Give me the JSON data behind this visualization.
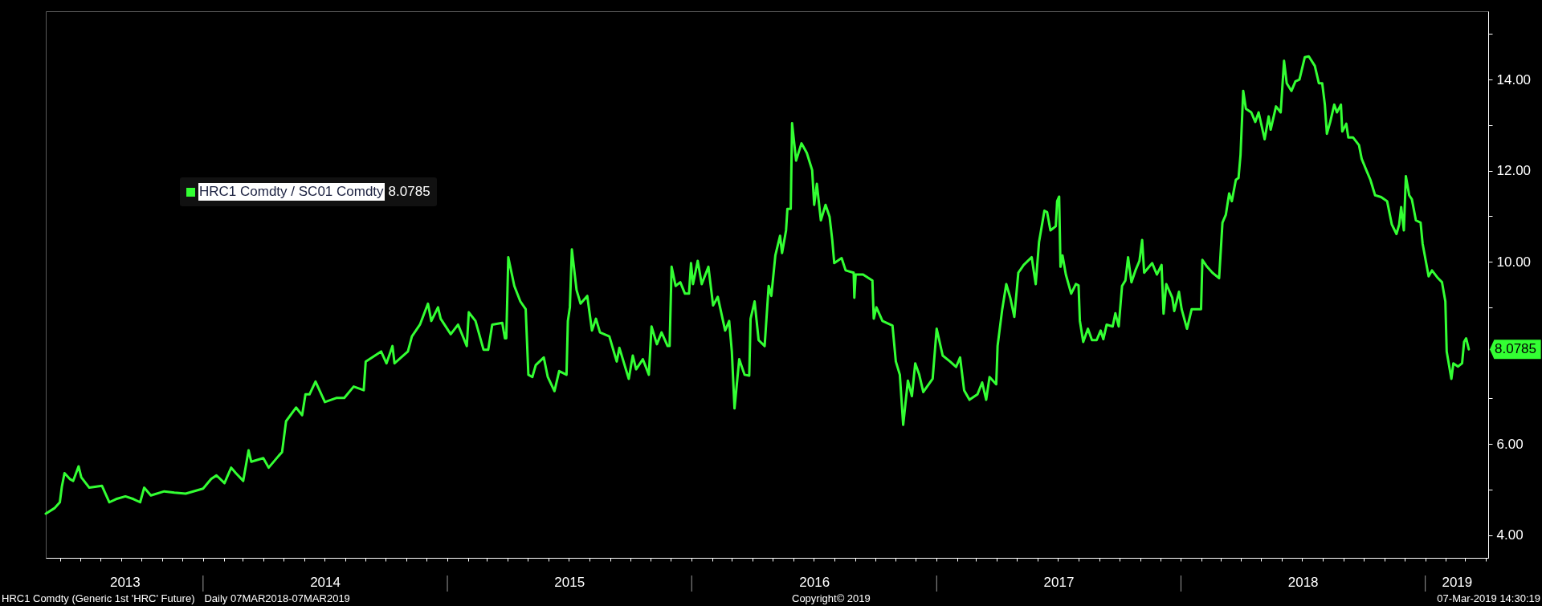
{
  "chart_data": {
    "type": "line",
    "legend": "top left",
    "xlim": [
      "2013-05-11",
      "2019-04-05"
    ],
    "ylim": [
      3.5,
      15.5
    ],
    "xticks": [
      {
        "value": "2013-06-01",
        "label": null
      },
      {
        "value": "2013-07-01",
        "label": null
      },
      {
        "value": "2013-08-01",
        "label": null
      },
      {
        "value": "2013-09-01",
        "label": null
      },
      {
        "value": "2013-09-06",
        "label": "2013"
      },
      {
        "value": "2013-10-01",
        "label": null
      },
      {
        "value": "2013-11-01",
        "label": null
      },
      {
        "value": "2013-12-01",
        "label": null
      },
      {
        "value": "2014-01-01",
        "label": null
      },
      {
        "value": "2014-02-01",
        "label": null
      },
      {
        "value": "2014-03-01",
        "label": null
      },
      {
        "value": "2014-04-01",
        "label": null
      },
      {
        "value": "2014-05-01",
        "label": null
      },
      {
        "value": "2014-06-01",
        "label": null
      },
      {
        "value": "2014-07-01",
        "label": null
      },
      {
        "value": "2014-07-02",
        "label": "2014"
      },
      {
        "value": "2014-08-01",
        "label": null
      },
      {
        "value": "2014-09-01",
        "label": null
      },
      {
        "value": "2014-10-01",
        "label": null
      },
      {
        "value": "2014-11-01",
        "label": null
      },
      {
        "value": "2014-12-01",
        "label": null
      },
      {
        "value": "2015-01-01",
        "label": null
      },
      {
        "value": "2015-02-01",
        "label": null
      },
      {
        "value": "2015-03-01",
        "label": null
      },
      {
        "value": "2015-04-01",
        "label": null
      },
      {
        "value": "2015-05-01",
        "label": null
      },
      {
        "value": "2015-06-01",
        "label": null
      },
      {
        "value": "2015-07-01",
        "label": null
      },
      {
        "value": "2015-07-02",
        "label": "2015"
      },
      {
        "value": "2015-08-01",
        "label": null
      },
      {
        "value": "2015-09-01",
        "label": null
      },
      {
        "value": "2015-10-01",
        "label": null
      },
      {
        "value": "2015-11-01",
        "label": null
      },
      {
        "value": "2015-12-01",
        "label": null
      },
      {
        "value": "2016-01-01",
        "label": null
      },
      {
        "value": "2016-02-01",
        "label": null
      },
      {
        "value": "2016-03-01",
        "label": null
      },
      {
        "value": "2016-04-01",
        "label": null
      },
      {
        "value": "2016-05-01",
        "label": null
      },
      {
        "value": "2016-06-01",
        "label": null
      },
      {
        "value": "2016-07-01",
        "label": null
      },
      {
        "value": "2016-07-02",
        "label": "2016"
      },
      {
        "value": "2016-08-01",
        "label": null
      },
      {
        "value": "2016-09-01",
        "label": null
      },
      {
        "value": "2016-10-01",
        "label": null
      },
      {
        "value": "2016-11-01",
        "label": null
      },
      {
        "value": "2016-12-01",
        "label": null
      },
      {
        "value": "2017-01-01",
        "label": null
      },
      {
        "value": "2017-02-01",
        "label": null
      },
      {
        "value": "2017-03-01",
        "label": null
      },
      {
        "value": "2017-04-01",
        "label": null
      },
      {
        "value": "2017-05-01",
        "label": null
      },
      {
        "value": "2017-06-01",
        "label": null
      },
      {
        "value": "2017-07-01",
        "label": null
      },
      {
        "value": "2017-07-02",
        "label": "2017"
      },
      {
        "value": "2017-08-01",
        "label": null
      },
      {
        "value": "2017-09-01",
        "label": null
      },
      {
        "value": "2017-10-01",
        "label": null
      },
      {
        "value": "2017-11-01",
        "label": null
      },
      {
        "value": "2017-12-01",
        "label": null
      },
      {
        "value": "2018-01-01",
        "label": null
      },
      {
        "value": "2018-02-01",
        "label": null
      },
      {
        "value": "2018-03-01",
        "label": null
      },
      {
        "value": "2018-04-01",
        "label": null
      },
      {
        "value": "2018-05-01",
        "label": null
      },
      {
        "value": "2018-06-01",
        "label": null
      },
      {
        "value": "2018-07-01",
        "label": null
      },
      {
        "value": "2018-07-02",
        "label": "2018"
      },
      {
        "value": "2018-08-01",
        "label": null
      },
      {
        "value": "2018-09-01",
        "label": null
      },
      {
        "value": "2018-10-01",
        "label": null
      },
      {
        "value": "2018-11-01",
        "label": null
      },
      {
        "value": "2018-12-01",
        "label": null
      },
      {
        "value": "2019-01-01",
        "label": null
      },
      {
        "value": "2019-02-01",
        "label": null
      },
      {
        "value": "2019-02-17",
        "label": "2019"
      },
      {
        "value": "2019-03-01",
        "label": null
      },
      {
        "value": "2019-04-01",
        "label": null
      }
    ],
    "yticks": [
      {
        "value": 4,
        "label": "4.00"
      },
      {
        "value": 5,
        "label": null
      },
      {
        "value": 6,
        "label": "6.00"
      },
      {
        "value": 7,
        "label": null
      },
      {
        "value": 9,
        "label": null
      },
      {
        "value": 10,
        "label": "10.00"
      },
      {
        "value": 11,
        "label": null
      },
      {
        "value": 12,
        "label": "12.00"
      },
      {
        "value": 13,
        "label": null
      },
      {
        "value": 14,
        "label": "14.00"
      },
      {
        "value": 15,
        "label": null
      }
    ],
    "x": [
      "2013-05-11",
      "2013-05-24",
      "2013-06-01",
      "2013-06-04",
      "2013-06-08",
      "2013-06-16",
      "2013-06-21",
      "2013-06-29",
      "2013-07-03",
      "2013-07-15",
      "2013-08-03",
      "2013-08-14",
      "2013-08-24",
      "2013-09-07",
      "2013-09-19",
      "2013-09-29",
      "2013-10-05",
      "2013-10-15",
      "2013-11-04",
      "2013-11-19",
      "2013-12-06",
      "2014-01-01",
      "2014-01-13",
      "2014-01-21",
      "2014-02-02",
      "2014-02-12",
      "2014-02-19",
      "2014-03-02",
      "2014-03-10",
      "2014-03-14",
      "2014-04-01",
      "2014-04-09",
      "2014-04-24",
      "2014-04-29",
      "2014-05-05",
      "2014-05-20",
      "2014-05-29",
      "2014-06-03",
      "2014-06-09",
      "2014-06-18",
      "2014-07-02",
      "2014-07-19",
      "2014-07-31",
      "2014-08-14",
      "2014-08-29",
      "2014-09-01",
      "2014-09-24",
      "2014-10-02",
      "2014-10-11",
      "2014-10-14",
      "2014-11-03",
      "2014-11-09",
      "2014-11-21",
      "2014-12-03",
      "2014-12-08",
      "2014-12-18",
      "2014-12-22",
      "2015-01-06",
      "2015-01-17",
      "2015-01-30",
      "2015-02-02",
      "2015-02-12",
      "2015-02-24",
      "2015-03-03",
      "2015-03-09",
      "2015-03-24",
      "2015-03-28",
      "2015-03-30",
      "2015-04-02",
      "2015-04-11",
      "2015-04-20",
      "2015-04-28",
      "2015-05-02",
      "2015-05-08",
      "2015-05-13",
      "2015-05-25",
      "2015-05-31",
      "2015-06-10",
      "2015-06-17",
      "2015-06-28",
      "2015-06-30",
      "2015-07-03",
      "2015-07-06",
      "2015-07-13",
      "2015-07-19",
      "2015-07-29",
      "2015-08-05",
      "2015-08-11",
      "2015-08-17",
      "2015-08-31",
      "2015-09-11",
      "2015-09-15",
      "2015-09-29",
      "2015-10-05",
      "2015-10-10",
      "2015-10-20",
      "2015-10-29",
      "2015-11-02",
      "2015-11-10",
      "2015-11-17",
      "2015-11-26",
      "2015-11-29",
      "2015-12-02",
      "2015-12-08",
      "2015-12-15",
      "2015-12-22",
      "2015-12-28",
      "2015-12-31",
      "2016-01-03",
      "2016-01-10",
      "2016-01-16",
      "2016-01-26",
      "2016-02-02",
      "2016-02-09",
      "2016-02-20",
      "2016-02-26",
      "2016-03-01",
      "2016-03-05",
      "2016-03-12",
      "2016-03-20",
      "2016-03-27",
      "2016-03-29",
      "2016-04-04",
      "2016-04-10",
      "2016-04-19",
      "2016-04-25",
      "2016-04-29",
      "2016-05-05",
      "2016-05-12",
      "2016-05-15",
      "2016-05-21",
      "2016-05-23",
      "2016-05-28",
      "2016-05-30",
      "2016-06-05",
      "2016-06-13",
      "2016-06-21",
      "2016-06-29",
      "2016-07-02",
      "2016-07-06",
      "2016-07-12",
      "2016-07-19",
      "2016-07-25",
      "2016-07-29",
      "2016-08-01",
      "2016-08-12",
      "2016-08-18",
      "2016-08-30",
      "2016-08-31",
      "2016-09-02",
      "2016-09-13",
      "2016-09-27",
      "2016-09-29",
      "2016-10-03",
      "2016-10-12",
      "2016-10-27",
      "2016-11-01",
      "2016-11-07",
      "2016-11-12",
      "2016-11-19",
      "2016-11-25",
      "2016-11-30",
      "2016-12-06",
      "2016-12-12",
      "2016-12-26",
      "2017-01-01",
      "2017-01-10",
      "2017-01-21",
      "2017-01-30",
      "2017-02-05",
      "2017-02-11",
      "2017-02-19",
      "2017-03-03",
      "2017-03-10",
      "2017-03-16",
      "2017-03-21",
      "2017-03-31",
      "2017-04-02",
      "2017-04-09",
      "2017-04-15",
      "2017-04-21",
      "2017-04-27",
      "2017-05-03",
      "2017-05-11",
      "2017-05-23",
      "2017-05-29",
      "2017-06-03",
      "2017-06-11",
      "2017-06-15",
      "2017-06-20",
      "2017-06-28",
      "2017-06-30",
      "2017-07-03",
      "2017-07-05",
      "2017-07-08",
      "2017-07-13",
      "2017-07-21",
      "2017-07-28",
      "2017-08-01",
      "2017-08-03",
      "2017-08-08",
      "2017-08-15",
      "2017-08-21",
      "2017-08-28",
      "2017-09-03",
      "2017-09-07",
      "2017-09-12",
      "2017-09-21",
      "2017-09-25",
      "2017-09-30",
      "2017-10-05",
      "2017-10-10",
      "2017-10-14",
      "2017-10-19",
      "2017-10-25",
      "2017-10-31",
      "2017-11-04",
      "2017-11-07",
      "2017-11-19",
      "2017-11-26",
      "2017-12-03",
      "2017-12-06",
      "2017-12-10",
      "2017-12-19",
      "2017-12-22",
      "2017-12-29",
      "2018-01-02",
      "2018-01-10",
      "2018-01-17",
      "2018-01-22",
      "2018-01-31",
      "2018-02-02",
      "2018-02-09",
      "2018-02-17",
      "2018-02-27",
      "2018-03-04",
      "2018-03-09",
      "2018-03-14",
      "2018-03-18",
      "2018-03-24",
      "2018-03-28",
      "2018-03-31",
      "2018-04-04",
      "2018-04-08",
      "2018-04-16",
      "2018-04-22",
      "2018-04-27",
      "2018-05-06",
      "2018-05-12",
      "2018-05-15",
      "2018-05-23",
      "2018-05-30",
      "2018-06-04",
      "2018-06-08",
      "2018-06-15",
      "2018-06-21",
      "2018-06-27",
      "2018-07-05",
      "2018-07-11",
      "2018-07-20",
      "2018-07-26",
      "2018-07-31",
      "2018-08-04",
      "2018-08-07",
      "2018-08-12",
      "2018-08-18",
      "2018-08-22",
      "2018-08-28",
      "2018-08-30",
      "2018-09-05",
      "2018-09-08",
      "2018-09-15",
      "2018-09-24",
      "2018-09-28",
      "2018-10-05",
      "2018-10-11",
      "2018-10-18",
      "2018-10-27",
      "2018-11-05",
      "2018-11-12",
      "2018-11-19",
      "2018-11-23",
      "2018-11-26",
      "2018-11-30",
      "2018-12-03",
      "2018-12-08",
      "2018-12-12",
      "2018-12-18",
      "2018-12-25",
      "2018-12-28",
      "2019-01-06",
      "2019-01-11",
      "2019-01-20",
      "2019-01-26",
      "2019-01-31",
      "2019-02-02",
      "2019-02-09",
      "2019-02-12",
      "2019-02-19",
      "2019-02-25",
      "2019-02-28",
      "2019-03-03",
      "2019-03-07"
    ],
    "series": [
      {
        "name": "HRC1 Comdty / SC01 Comdty",
        "color": "#33ff33",
        "values": [
          4.47,
          4.59,
          4.72,
          5.06,
          5.36,
          5.23,
          5.19,
          5.51,
          5.27,
          5.04,
          5.08,
          4.72,
          4.79,
          4.85,
          4.79,
          4.72,
          5.04,
          4.87,
          4.96,
          4.93,
          4.91,
          5.02,
          5.23,
          5.31,
          5.14,
          5.48,
          5.36,
          5.19,
          5.86,
          5.61,
          5.69,
          5.48,
          5.74,
          5.82,
          6.5,
          6.8,
          6.63,
          7.09,
          7.09,
          7.37,
          6.92,
          7.01,
          7.01,
          7.26,
          7.18,
          7.81,
          8.03,
          7.77,
          8.15,
          7.77,
          8.03,
          8.36,
          8.62,
          9.08,
          8.7,
          9.0,
          8.75,
          8.41,
          8.62,
          8.15,
          8.89,
          8.7,
          8.07,
          8.07,
          8.62,
          8.66,
          8.32,
          8.32,
          10.1,
          9.47,
          9.13,
          8.96,
          7.52,
          7.47,
          7.73,
          7.9,
          7.47,
          7.16,
          7.6,
          7.52,
          8.7,
          9.0,
          10.27,
          9.38,
          9.08,
          9.25,
          8.49,
          8.75,
          8.45,
          8.36,
          7.81,
          8.11,
          7.43,
          7.94,
          7.64,
          7.86,
          7.52,
          8.58,
          8.19,
          8.45,
          8.15,
          8.15,
          9.89,
          9.47,
          9.55,
          9.3,
          9.3,
          9.97,
          9.51,
          10.02,
          9.51,
          9.89,
          9.04,
          9.23,
          8.49,
          8.7,
          8.03,
          6.78,
          7.86,
          7.52,
          7.5,
          8.75,
          9.13,
          8.28,
          8.15,
          9.47,
          9.25,
          10.14,
          10.57,
          10.19,
          10.69,
          11.16,
          11.16,
          13.04,
          12.22,
          12.6,
          12.39,
          12.01,
          11.25,
          11.71,
          10.91,
          11.25,
          10.99,
          10.48,
          9.97,
          10.08,
          9.81,
          9.76,
          9.21,
          9.72,
          9.72,
          9.59,
          8.75,
          9.0,
          8.7,
          8.6,
          7.81,
          7.52,
          6.42,
          7.39,
          7.05,
          7.77,
          7.52,
          7.14,
          7.43,
          8.53,
          7.94,
          7.81,
          7.69,
          7.9,
          7.18,
          6.97,
          7.09,
          7.35,
          6.97,
          7.47,
          7.31,
          8.15,
          8.96,
          9.51,
          9.21,
          8.79,
          9.76,
          9.93,
          10.1,
          9.51,
          10.44,
          11.12,
          11.09,
          10.69,
          10.78,
          11.33,
          11.43,
          9.89,
          10.14,
          9.72,
          9.3,
          9.51,
          9.48,
          8.7,
          8.24,
          8.53,
          8.28,
          8.28,
          8.49,
          8.3,
          8.62,
          8.58,
          8.87,
          8.58,
          9.47,
          9.59,
          10.1,
          9.55,
          9.81,
          10.02,
          10.48,
          9.76,
          9.97,
          9.72,
          9.93,
          8.86,
          9.51,
          9.21,
          8.92,
          9.34,
          8.96,
          8.53,
          8.96,
          8.96,
          8.96,
          10.04,
          9.89,
          9.76,
          9.64,
          10.86,
          11.03,
          11.5,
          11.33,
          11.8,
          11.84,
          12.35,
          13.75,
          13.36,
          13.28,
          13.07,
          13.28,
          12.69,
          13.19,
          12.9,
          13.41,
          13.28,
          14.41,
          13.92,
          13.75,
          13.96,
          14.0,
          14.49,
          14.51,
          14.3,
          13.92,
          13.92,
          13.45,
          12.81,
          13.07,
          13.45,
          13.28,
          13.45,
          12.86,
          13.03,
          12.73,
          12.73,
          12.56,
          12.26,
          12.01,
          11.8,
          11.46,
          11.42,
          11.33,
          10.82,
          10.61,
          10.82,
          11.2,
          10.69,
          11.88,
          11.46,
          11.37,
          10.91,
          10.86,
          10.4,
          9.68,
          9.81,
          9.64,
          9.55,
          9.13,
          8.03,
          7.43,
          7.77,
          7.7,
          7.77,
          8.24,
          8.32,
          8.0785
        ]
      }
    ],
    "annotations": [
      "8.0785",
      "HRC1 Comdty (Generic 1st 'HRC' Future)",
      "Daily 07MAR2018-07MAR2019",
      "Copyright© 2019",
      "07-Mar-2019 14:30:19"
    ]
  }
}
